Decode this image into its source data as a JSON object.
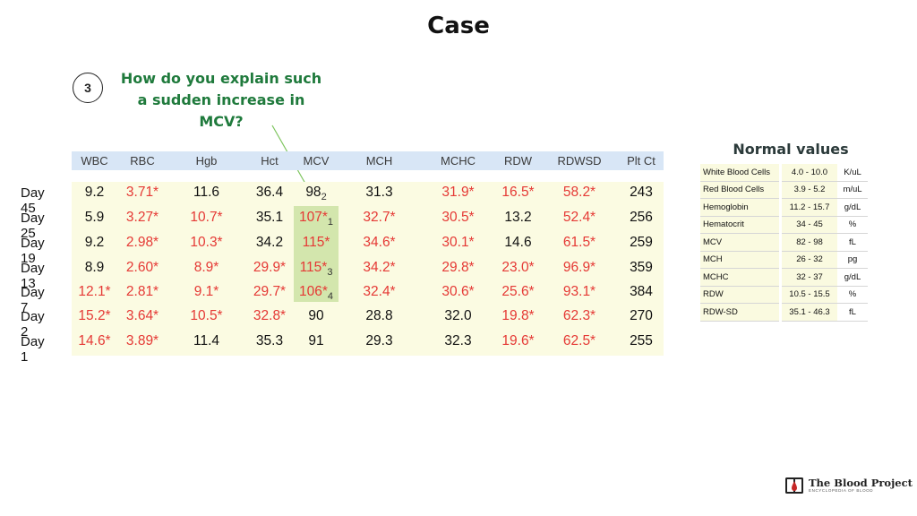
{
  "title": "Case",
  "question": {
    "number": "3",
    "text": "How do you explain such a sudden increase in MCV?"
  },
  "lab_table": {
    "columns": [
      "WBC",
      "RBC",
      "Hgb",
      "Hct",
      "MCV",
      "MCH",
      "MCHC",
      "RDW",
      "RDWSD",
      "Plt Ct"
    ],
    "rows": [
      {
        "label": "Day 45",
        "cells": [
          {
            "v": "9.2",
            "abn": false
          },
          {
            "v": "3.71*",
            "abn": true
          },
          {
            "v": "11.6",
            "abn": false
          },
          {
            "v": "36.4",
            "abn": false
          },
          {
            "v": "98",
            "sub": "2",
            "abn": false
          },
          {
            "v": "31.3",
            "abn": false
          },
          {
            "v": "31.9*",
            "abn": true
          },
          {
            "v": "16.5*",
            "abn": true
          },
          {
            "v": "58.2*",
            "abn": true
          },
          {
            "v": "243",
            "abn": false
          }
        ]
      },
      {
        "label": "Day 25",
        "cells": [
          {
            "v": "5.9",
            "abn": false
          },
          {
            "v": "3.27*",
            "abn": true
          },
          {
            "v": "10.7*",
            "abn": true
          },
          {
            "v": "35.1",
            "abn": false
          },
          {
            "v": "107*",
            "sub": "1",
            "abn": true
          },
          {
            "v": "32.7*",
            "abn": true
          },
          {
            "v": "30.5*",
            "abn": true
          },
          {
            "v": "13.2",
            "abn": false
          },
          {
            "v": "52.4*",
            "abn": true
          },
          {
            "v": "256",
            "abn": false
          }
        ]
      },
      {
        "label": "Day 19",
        "cells": [
          {
            "v": "9.2",
            "abn": false
          },
          {
            "v": "2.98*",
            "abn": true
          },
          {
            "v": "10.3*",
            "abn": true
          },
          {
            "v": "34.2",
            "abn": false
          },
          {
            "v": "115*",
            "abn": true
          },
          {
            "v": "34.6*",
            "abn": true
          },
          {
            "v": "30.1*",
            "abn": true
          },
          {
            "v": "14.6",
            "abn": false
          },
          {
            "v": "61.5*",
            "abn": true
          },
          {
            "v": "259",
            "abn": false
          }
        ]
      },
      {
        "label": "Day 13",
        "cells": [
          {
            "v": "8.9",
            "abn": false
          },
          {
            "v": "2.60*",
            "abn": true
          },
          {
            "v": "8.9*",
            "abn": true
          },
          {
            "v": "29.9*",
            "abn": true
          },
          {
            "v": "115*",
            "sub": "3",
            "abn": true
          },
          {
            "v": "34.2*",
            "abn": true
          },
          {
            "v": "29.8*",
            "abn": true
          },
          {
            "v": "23.0*",
            "abn": true
          },
          {
            "v": "96.9*",
            "abn": true
          },
          {
            "v": "359",
            "abn": false
          }
        ]
      },
      {
        "label": "Day 7",
        "cells": [
          {
            "v": "12.1*",
            "abn": true
          },
          {
            "v": "2.81*",
            "abn": true
          },
          {
            "v": "9.1*",
            "abn": true
          },
          {
            "v": "29.7*",
            "abn": true
          },
          {
            "v": "106*",
            "sub": "4",
            "abn": true
          },
          {
            "v": "32.4*",
            "abn": true
          },
          {
            "v": "30.6*",
            "abn": true
          },
          {
            "v": "25.6*",
            "abn": true
          },
          {
            "v": "93.1*",
            "abn": true
          },
          {
            "v": "384",
            "abn": false
          }
        ]
      },
      {
        "label": "Day 2",
        "cells": [
          {
            "v": "15.2*",
            "abn": true
          },
          {
            "v": "3.64*",
            "abn": true
          },
          {
            "v": "10.5*",
            "abn": true
          },
          {
            "v": "32.8*",
            "abn": true
          },
          {
            "v": "90",
            "abn": false
          },
          {
            "v": "28.8",
            "abn": false
          },
          {
            "v": "32.0",
            "abn": false
          },
          {
            "v": "19.8*",
            "abn": true
          },
          {
            "v": "62.3*",
            "abn": true
          },
          {
            "v": "270",
            "abn": false
          }
        ]
      },
      {
        "label": "Day 1",
        "cells": [
          {
            "v": "14.6*",
            "abn": true
          },
          {
            "v": "3.89*",
            "abn": true
          },
          {
            "v": "11.4",
            "abn": false
          },
          {
            "v": "35.3",
            "abn": false
          },
          {
            "v": "91",
            "abn": false
          },
          {
            "v": "29.3",
            "abn": false
          },
          {
            "v": "32.3",
            "abn": false
          },
          {
            "v": "19.6*",
            "abn": true
          },
          {
            "v": "62.5*",
            "abn": true
          },
          {
            "v": "255",
            "abn": false
          }
        ]
      }
    ]
  },
  "normal_values": {
    "title": "Normal values",
    "rows": [
      {
        "name": "White Blood Cells",
        "range": "4.0 - 10.0",
        "unit": "K/uL"
      },
      {
        "name": "Red Blood Cells",
        "range": "3.9 - 5.2",
        "unit": "m/uL"
      },
      {
        "name": "Hemoglobin",
        "range": "11.2 - 15.7",
        "unit": "g/dL"
      },
      {
        "name": "Hematocrit",
        "range": "34 - 45",
        "unit": "%"
      },
      {
        "name": "MCV",
        "range": "82 - 98",
        "unit": "fL"
      },
      {
        "name": "MCH",
        "range": "26 - 32",
        "unit": "pg"
      },
      {
        "name": "MCHC",
        "range": "32 - 37",
        "unit": "g/dL"
      },
      {
        "name": "RDW",
        "range": "10.5 - 15.5",
        "unit": "%"
      },
      {
        "name": "RDW-SD",
        "range": "35.1 - 46.3",
        "unit": "fL"
      }
    ]
  },
  "logo": {
    "name": "The Blood Project",
    "tagline": "ENCYCLOPEDIA OF BLOOD"
  },
  "colors": {
    "abnormal": "#e53935",
    "question": "#1f7a3c",
    "header_bg": "#d8e6f6",
    "body_bg": "#fbfbe2",
    "mcv_highlight": "#d3e6ad"
  }
}
